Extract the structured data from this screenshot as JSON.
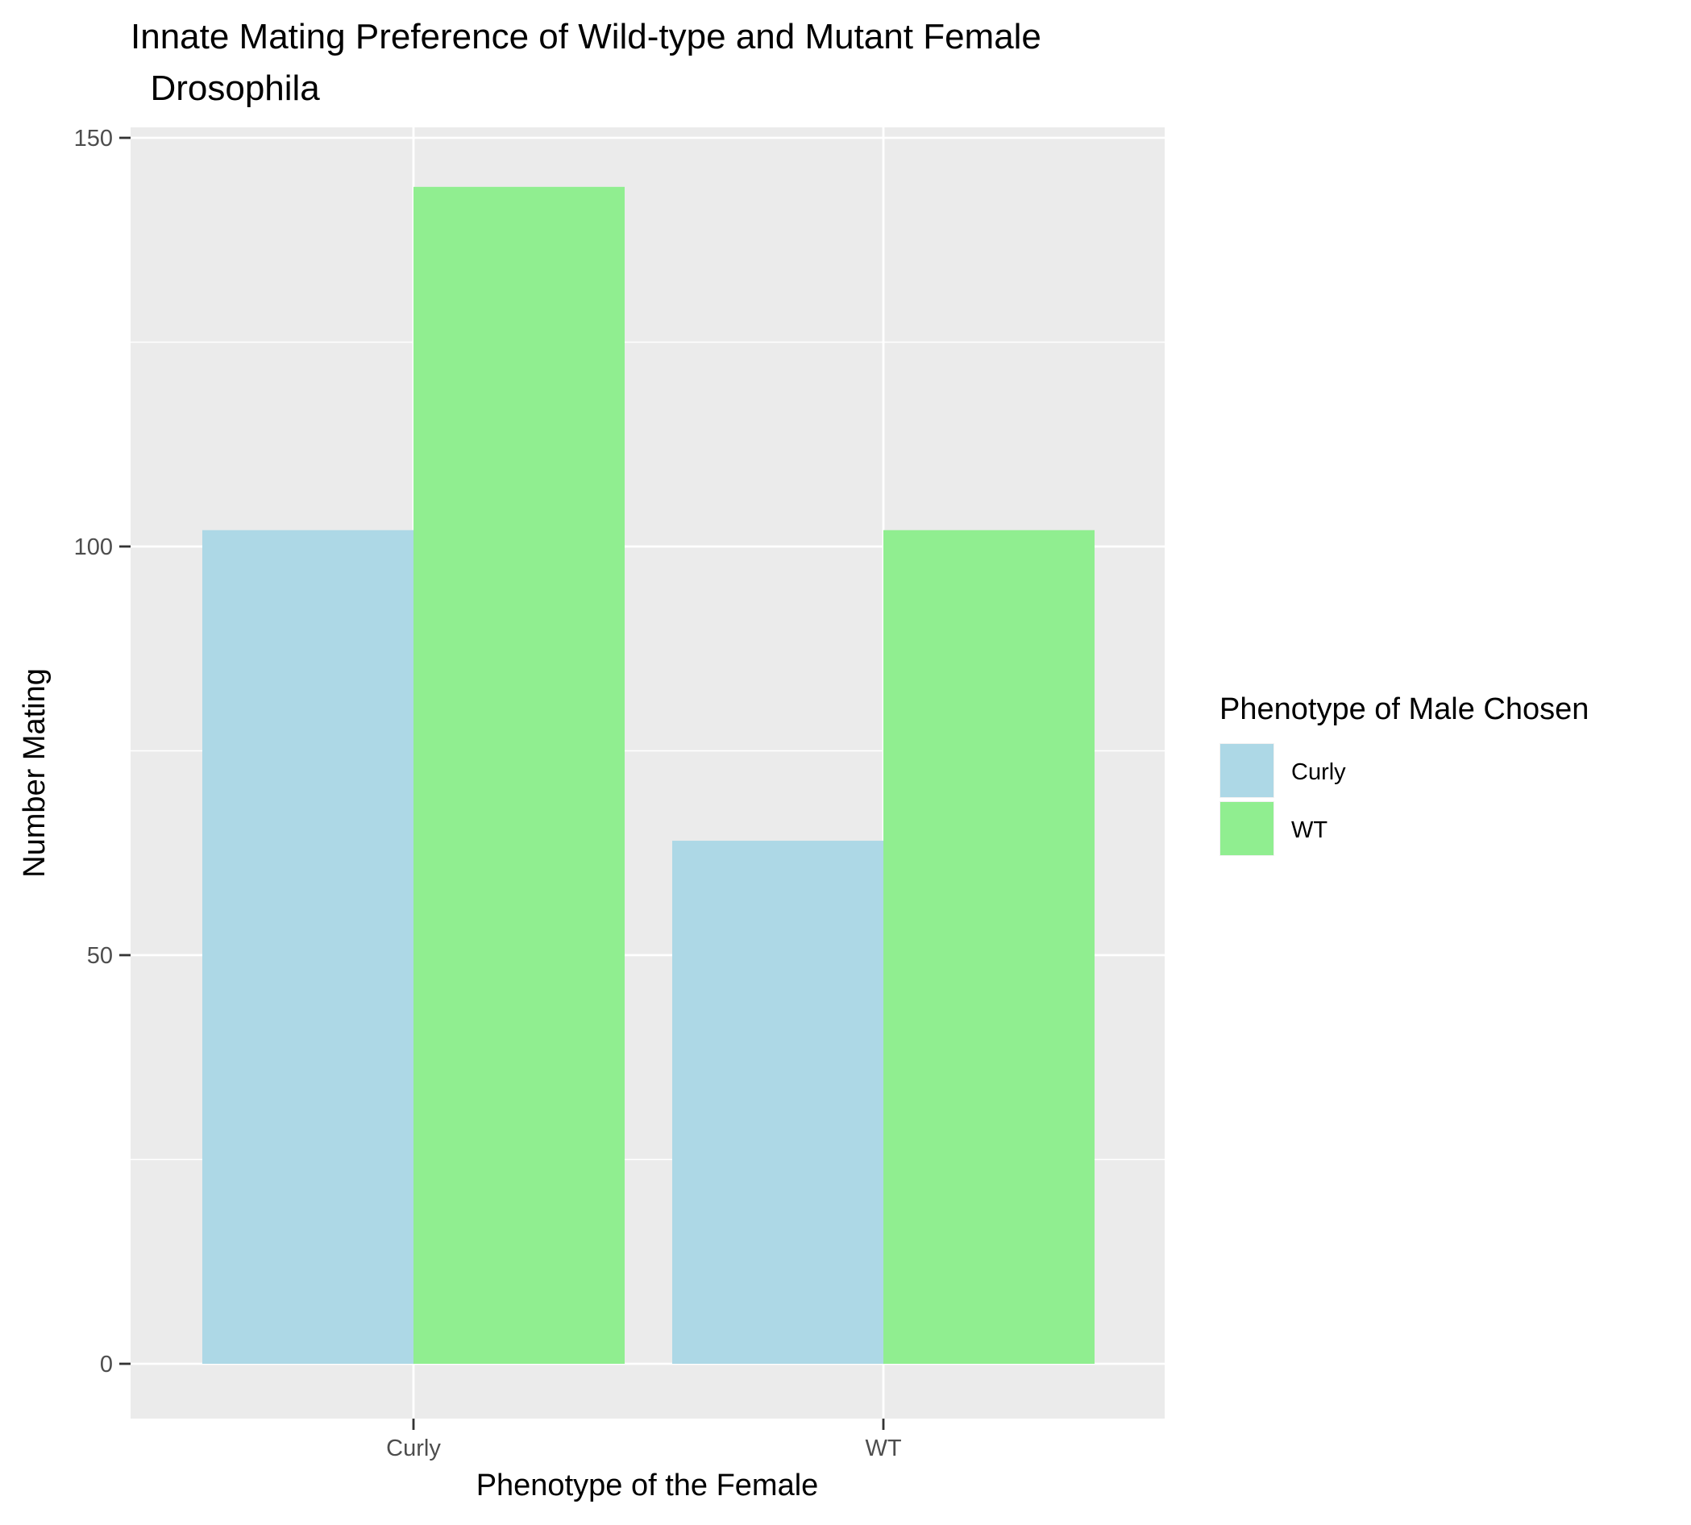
{
  "chart_data": {
    "type": "bar",
    "title_lines": [
      "Innate Mating Preference of Wild-type and Mutant Female",
      "  Drosophila"
    ],
    "xlabel": "Phenotype of the Female",
    "ylabel": "Number Mating",
    "categories": [
      "Curly",
      "WT"
    ],
    "series": [
      {
        "name": "Curly",
        "color": "#add8e6",
        "values": [
          102,
          64
        ]
      },
      {
        "name": "WT",
        "color": "#90ee90",
        "values": [
          144,
          102
        ]
      }
    ],
    "ylim": [
      -7,
      150
    ],
    "yticks": [
      0,
      50,
      100,
      150
    ],
    "grid": true,
    "panel_background": "#ebebeb",
    "grid_color": "#ffffff",
    "legend": {
      "title": "Phenotype of Male Chosen",
      "position": "right"
    }
  }
}
